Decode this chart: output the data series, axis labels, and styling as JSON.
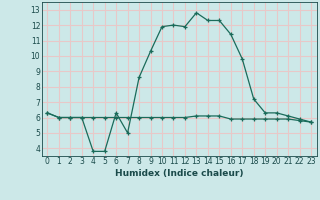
{
  "xlabel": "Humidex (Indice chaleur)",
  "x": [
    0,
    1,
    2,
    3,
    4,
    5,
    6,
    7,
    8,
    9,
    10,
    11,
    12,
    13,
    14,
    15,
    16,
    17,
    18,
    19,
    20,
    21,
    22,
    23
  ],
  "line1_y": [
    6.3,
    6.0,
    6.0,
    6.0,
    3.8,
    3.8,
    6.3,
    5.0,
    8.6,
    10.3,
    11.9,
    12.0,
    11.9,
    12.8,
    12.3,
    12.3,
    11.4,
    9.8,
    7.2,
    6.3,
    6.3,
    6.1,
    5.9,
    5.7
  ],
  "line2_y": [
    6.3,
    6.0,
    6.0,
    6.0,
    6.0,
    6.0,
    6.0,
    6.0,
    6.0,
    6.0,
    6.0,
    6.0,
    6.0,
    6.1,
    6.1,
    6.1,
    5.9,
    5.9,
    5.9,
    5.9,
    5.9,
    5.9,
    5.8,
    5.7
  ],
  "line_color": "#1a6b5a",
  "bg_color": "#cce8e8",
  "grid_color": "#e8c8c8",
  "ylim": [
    3.5,
    13.5
  ],
  "xlim": [
    -0.5,
    23.5
  ],
  "yticks": [
    4,
    5,
    6,
    7,
    8,
    9,
    10,
    11,
    12,
    13
  ],
  "xticks": [
    0,
    1,
    2,
    3,
    4,
    5,
    6,
    7,
    8,
    9,
    10,
    11,
    12,
    13,
    14,
    15,
    16,
    17,
    18,
    19,
    20,
    21,
    22,
    23
  ]
}
